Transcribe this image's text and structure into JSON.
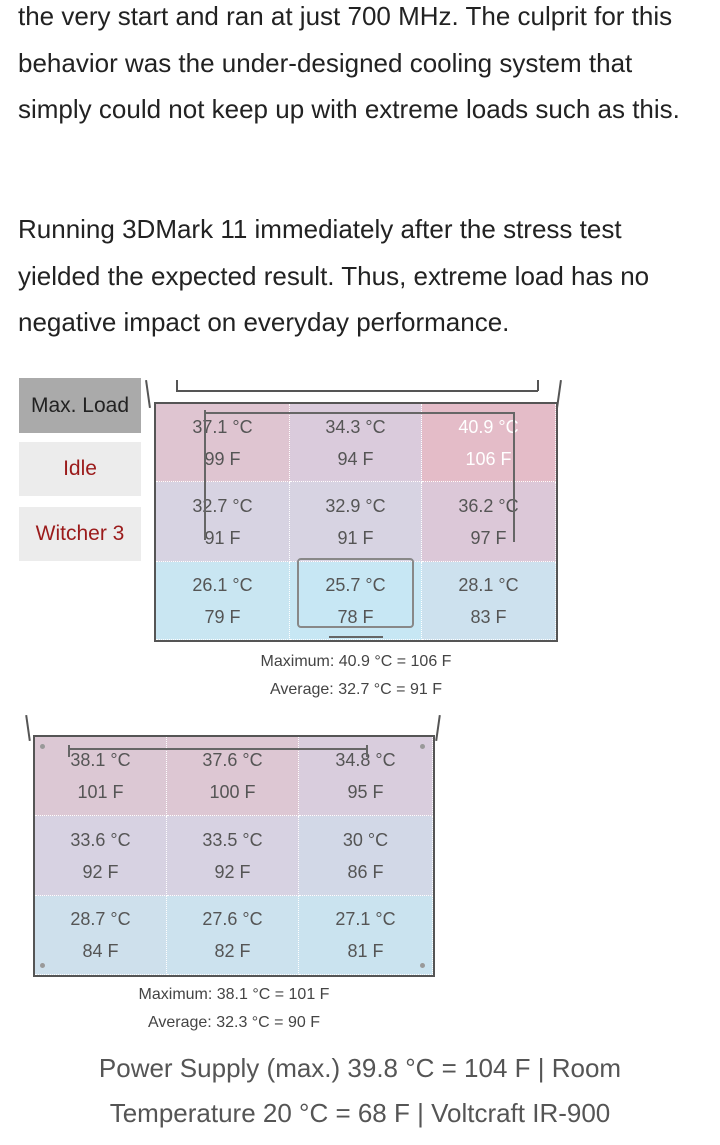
{
  "paragraph1": "the very start and ran at just 700 MHz. The culprit for this behavior was the under-designed cooling system that simply could not keep up with extreme loads such as this.",
  "paragraph2": "Running 3DMark 11 immediately after the stress test yielded the expected result. Thus, extreme load has no negative impact on everyday performance.",
  "tabs": [
    {
      "label": "Max. Load",
      "active": true
    },
    {
      "label": "Idle",
      "active": false
    },
    {
      "label": "Witcher 3",
      "active": false
    }
  ],
  "top_map": {
    "cells": [
      {
        "c": "37.1 °C",
        "f": "99 F",
        "color": "#dfc5d1"
      },
      {
        "c": "34.3 °C",
        "f": "94 F",
        "color": "#dacbdc"
      },
      {
        "c": "40.9 °C",
        "f": "106 F",
        "color": "#e4bcc8"
      },
      {
        "c": "32.7 °C",
        "f": "91 F",
        "color": "#d7d3e2"
      },
      {
        "c": "32.9 °C",
        "f": "91 F",
        "color": "#d7d3e2"
      },
      {
        "c": "36.2 °C",
        "f": "97 F",
        "color": "#dcc8d8"
      },
      {
        "c": "26.1 °C",
        "f": "79 F",
        "color": "#c9e6f2"
      },
      {
        "c": "25.7 °C",
        "f": "78 F",
        "color": "#c7e7f4"
      },
      {
        "c": "28.1 °C",
        "f": "83 F",
        "color": "#cde1ee"
      }
    ],
    "maximum": "Maximum: 40.9 °C = 106 F",
    "average": "Average: 32.7 °C = 91 F"
  },
  "bottom_map": {
    "cells": [
      {
        "c": "38.1 °C",
        "f": "101 F",
        "color": "#dcc8d4"
      },
      {
        "c": "37.6 °C",
        "f": "100 F",
        "color": "#ddc7d3"
      },
      {
        "c": "34.8 °C",
        "f": "95 F",
        "color": "#d9cddd"
      },
      {
        "c": "33.6 °C",
        "f": "92 F",
        "color": "#d7d2e2"
      },
      {
        "c": "33.5 °C",
        "f": "92 F",
        "color": "#d7d2e2"
      },
      {
        "c": "30 °C",
        "f": "86 F",
        "color": "#d2d8e7"
      },
      {
        "c": "28.7 °C",
        "f": "84 F",
        "color": "#cee0ec"
      },
      {
        "c": "27.6 °C",
        "f": "82 F",
        "color": "#cce2ee"
      },
      {
        "c": "27.1 °C",
        "f": "81 F",
        "color": "#cae3ef"
      }
    ],
    "maximum": "Maximum: 38.1 °C = 101 F",
    "average": "Average: 32.3 °C = 90 F"
  },
  "caption": "Power Supply (max.)  39.8 °C = 104 F | Room Temperature 20 °C = 68 F | Voltcraft IR-900"
}
